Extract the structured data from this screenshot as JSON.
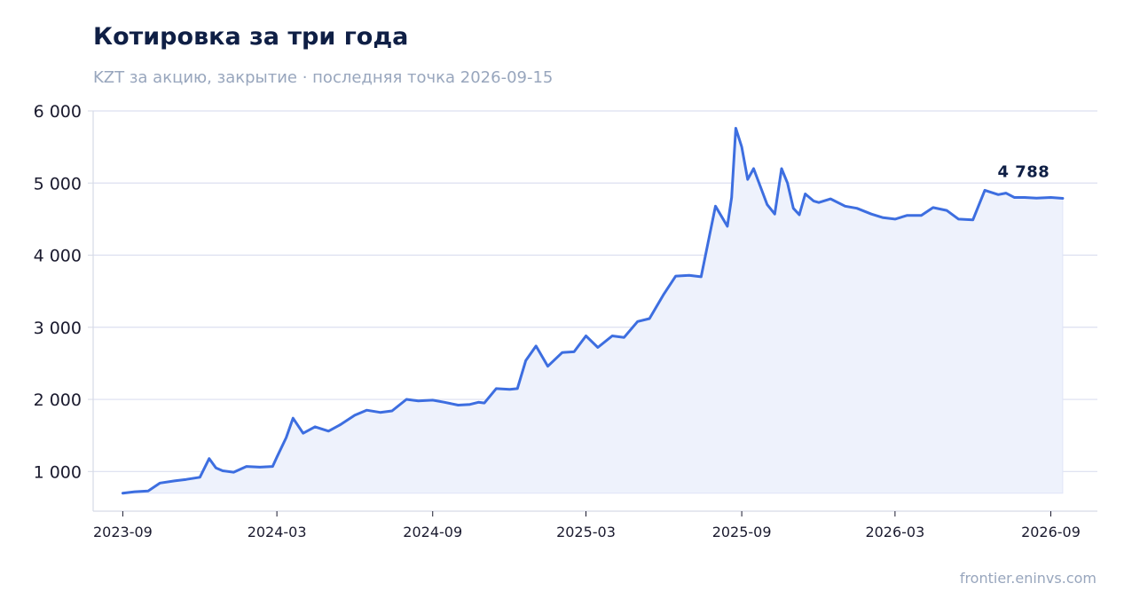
{
  "header": {
    "title": "Котировка за три года",
    "subtitle": "KZT за акцию, закрытие · последняя точка 2026-09-15"
  },
  "footer": {
    "source": "frontier.eninvs.com"
  },
  "colors": {
    "line": "#3d6ee0",
    "fill": "#eef2fc",
    "grid": "#dcdff0",
    "axis": "#d6dae6",
    "title": "#0f1f45",
    "muted": "#98a6bd"
  },
  "chart_data": {
    "type": "line",
    "title": "Котировка за три года",
    "subtitle": "KZT за акцию, закрытие · последняя точка 2026-09-15",
    "xlabel": "",
    "ylabel": "",
    "ylim": [
      450,
      6000
    ],
    "xlim": [
      "2023-07-28",
      "2026-10-26"
    ],
    "y_ticks": [
      1000,
      2000,
      3000,
      4000,
      5000,
      6000
    ],
    "y_tick_labels": [
      "1 000",
      "2 000",
      "3 000",
      "4 000",
      "5 000",
      "6 000"
    ],
    "x_ticks": [
      "2023-09-01",
      "2024-03-01",
      "2024-09-01",
      "2025-03-01",
      "2025-09-01",
      "2026-03-01",
      "2026-09-01"
    ],
    "x_tick_labels": [
      "2023-09",
      "2024-03",
      "2024-09",
      "2025-03",
      "2025-09",
      "2026-03",
      "2026-09"
    ],
    "grid": "horizontal",
    "area_fill": true,
    "last_value_label": "4 788",
    "series": [
      {
        "x": [
          "2023-09-01",
          "2023-09-15",
          "2023-10-01",
          "2023-10-15",
          "2023-11-01",
          "2023-11-15",
          "2023-12-01",
          "2023-12-12",
          "2023-12-20",
          "2023-12-28",
          "2024-01-10",
          "2024-01-25",
          "2024-02-10",
          "2024-02-25",
          "2024-03-01",
          "2024-03-12",
          "2024-03-20",
          "2024-04-01",
          "2024-04-15",
          "2024-05-01",
          "2024-05-15",
          "2024-06-01",
          "2024-06-15",
          "2024-07-01",
          "2024-07-15",
          "2024-08-01",
          "2024-08-15",
          "2024-09-01",
          "2024-09-15",
          "2024-10-01",
          "2024-10-15",
          "2024-10-25",
          "2024-11-01",
          "2024-11-15",
          "2024-12-01",
          "2024-12-10",
          "2024-12-20",
          "2025-01-01",
          "2025-01-15",
          "2025-02-01",
          "2025-02-15",
          "2025-03-01",
          "2025-03-15",
          "2025-04-01",
          "2025-04-15",
          "2025-05-01",
          "2025-05-15",
          "2025-06-01",
          "2025-06-15",
          "2025-07-01",
          "2025-07-15",
          "2025-08-01",
          "2025-08-15",
          "2025-08-20",
          "2025-08-25",
          "2025-09-01",
          "2025-09-08",
          "2025-09-15",
          "2025-10-01",
          "2025-10-10",
          "2025-10-18",
          "2025-10-25",
          "2025-11-01",
          "2025-11-08",
          "2025-11-15",
          "2025-11-25",
          "2025-12-01",
          "2025-12-15",
          "2026-01-01",
          "2026-01-15",
          "2026-02-01",
          "2026-02-15",
          "2026-03-01",
          "2026-03-15",
          "2026-04-01",
          "2026-04-15",
          "2026-05-01",
          "2026-05-15",
          "2026-06-01",
          "2026-06-15",
          "2026-07-01",
          "2026-07-10",
          "2026-07-20",
          "2026-08-01",
          "2026-08-15",
          "2026-09-01",
          "2026-09-15"
        ],
        "y": [
          700,
          720,
          730,
          840,
          870,
          890,
          920,
          1180,
          1050,
          1010,
          990,
          1070,
          1060,
          1070,
          1200,
          1470,
          1740,
          1530,
          1620,
          1560,
          1650,
          1780,
          1850,
          1820,
          1840,
          2000,
          1980,
          1990,
          1960,
          1920,
          1930,
          1960,
          1950,
          2150,
          2140,
          2150,
          2540,
          2740,
          2460,
          2650,
          2660,
          2880,
          2720,
          2880,
          2860,
          3080,
          3120,
          3460,
          3710,
          3720,
          3700,
          4680,
          4400,
          4800,
          5760,
          5500,
          5050,
          5200,
          4700,
          4570,
          5200,
          5000,
          4650,
          4560,
          4850,
          4750,
          4730,
          4780,
          4680,
          4650,
          4570,
          4520,
          4500,
          4550,
          4550,
          4660,
          4620,
          4500,
          4490,
          4900,
          4840,
          4860,
          4800,
          4800,
          4790,
          4800,
          4788
        ]
      }
    ]
  }
}
